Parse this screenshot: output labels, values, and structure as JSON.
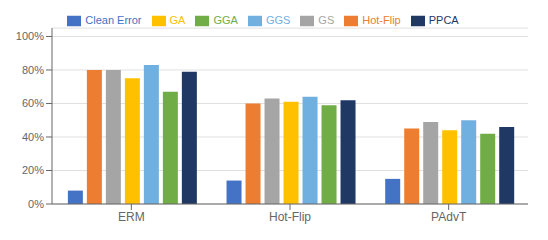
{
  "chart_data": {
    "type": "bar",
    "categories": [
      "ERM",
      "Hot-Flip",
      "PAdvT"
    ],
    "series": [
      {
        "name": "Clean Error",
        "color": "#4472C4",
        "values": [
          0.08,
          0.14,
          0.15
        ]
      },
      {
        "name": "Hot-Flip",
        "color": "#ED7D31",
        "values": [
          0.8,
          0.6,
          0.45
        ]
      },
      {
        "name": "GS",
        "color": "#A5A5A5",
        "values": [
          0.8,
          0.63,
          0.49
        ]
      },
      {
        "name": "GA",
        "color": "#FFC000",
        "values": [
          0.75,
          0.61,
          0.44
        ]
      },
      {
        "name": "GGS",
        "color": "#70B0E0",
        "values": [
          0.83,
          0.64,
          0.5
        ]
      },
      {
        "name": "GGA",
        "color": "#70AD47",
        "values": [
          0.67,
          0.59,
          0.42
        ]
      },
      {
        "name": "PPCA",
        "color": "#1F3864",
        "values": [
          0.79,
          0.62,
          0.46
        ]
      }
    ],
    "ylim": [
      0,
      1.05
    ],
    "yticks": [
      {
        "value": 0.0,
        "label": "0%"
      },
      {
        "value": 0.2,
        "label": "20%"
      },
      {
        "value": 0.4,
        "label": "40%"
      },
      {
        "value": 0.6,
        "label": "60%"
      },
      {
        "value": 0.8,
        "label": "80%"
      },
      {
        "value": 1.0,
        "label": "100%"
      }
    ],
    "grid": true,
    "legend": "top"
  }
}
